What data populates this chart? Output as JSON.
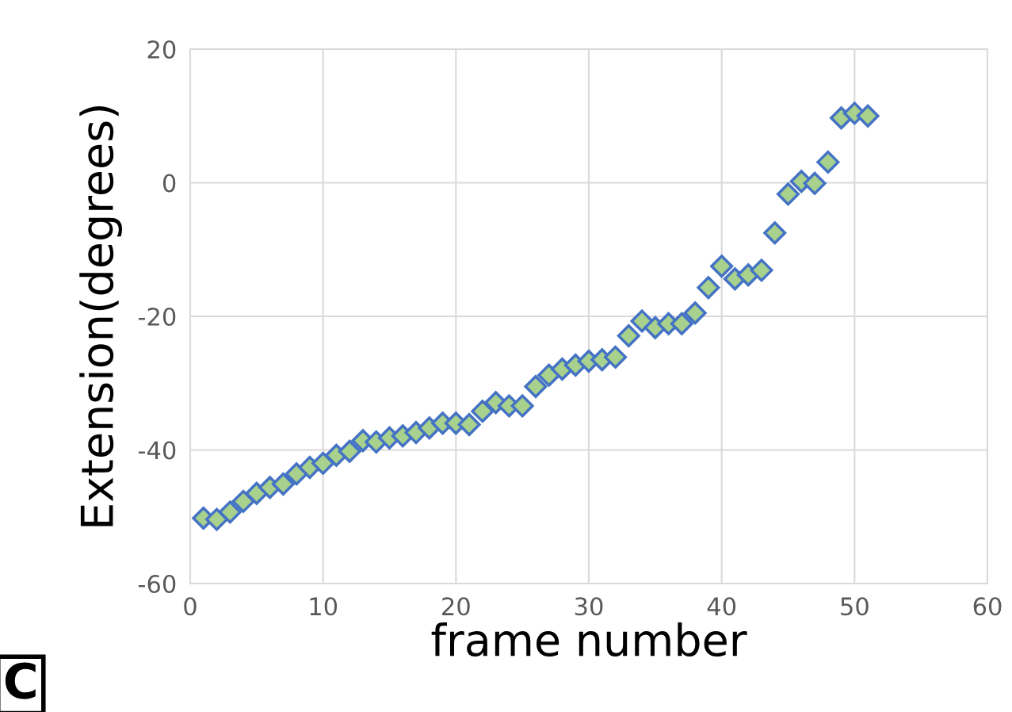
{
  "chart_data": {
    "type": "scatter",
    "xlabel": "frame number",
    "ylabel": "Extension(degrees)",
    "x": [
      1,
      2,
      3,
      4,
      5,
      6,
      7,
      8,
      9,
      10,
      11,
      12,
      13,
      14,
      15,
      16,
      17,
      18,
      19,
      20,
      21,
      22,
      23,
      24,
      25,
      26,
      27,
      28,
      29,
      30,
      31,
      32,
      33,
      34,
      35,
      36,
      37,
      38,
      39,
      40,
      41,
      42,
      43,
      44,
      45,
      46,
      47,
      48,
      49,
      50,
      51
    ],
    "series": [
      {
        "color": "#a9d18e",
        "values": [
          -50.2,
          -50.4,
          -49.3,
          -47.7,
          -46.5,
          -45.6,
          -45.1,
          -43.6,
          -42.6,
          -42.0,
          -40.8,
          -40.2,
          -38.6,
          -38.8,
          -38.2,
          -37.9,
          -37.4,
          -36.7,
          -36.0,
          -36.0,
          -36.2,
          -34.2,
          -32.9,
          -33.4,
          -33.4,
          -30.5,
          -28.8,
          -27.9,
          -27.3,
          -26.7,
          -26.5,
          -26.1,
          -22.9,
          -20.7,
          -21.7,
          -21.1,
          -21.1,
          -19.5,
          -15.7,
          -12.5,
          -14.4,
          -13.8,
          -13.1,
          -7.5,
          -1.7,
          0.2,
          -0.1,
          3.1,
          9.7,
          10.4,
          10.0
        ]
      }
    ],
    "xlim": [
      0,
      60
    ],
    "xticks": [
      0,
      10,
      20,
      30,
      40,
      50,
      60
    ],
    "ylim": [
      -60,
      20
    ],
    "yticks": [
      -60,
      -40,
      -20,
      0,
      20
    ],
    "grid": true,
    "marker": "diamond",
    "annotations": [
      "C"
    ]
  }
}
